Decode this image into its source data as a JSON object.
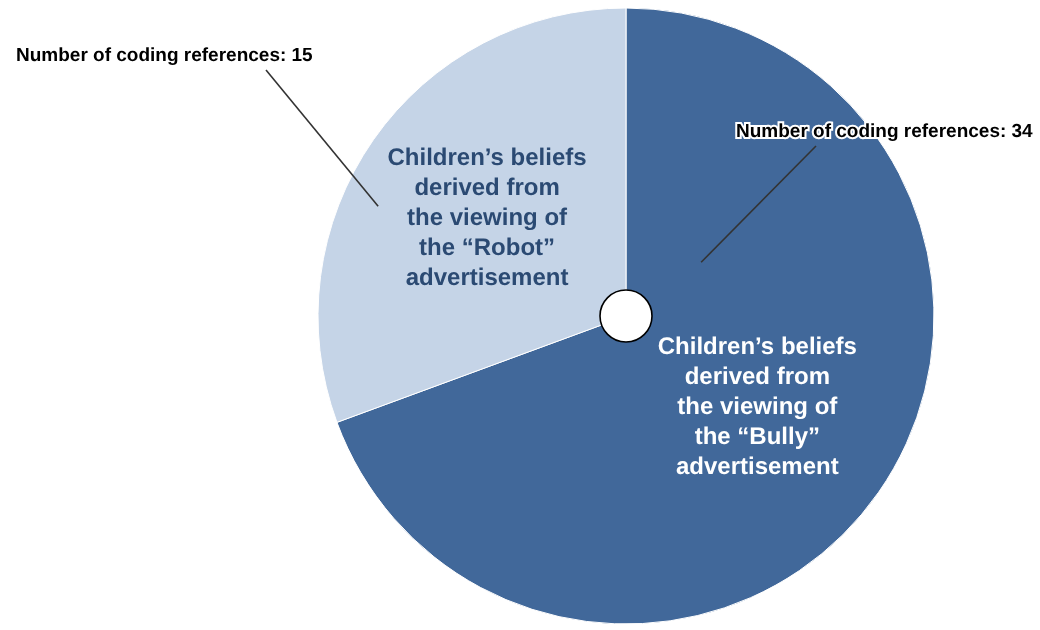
{
  "chart_data": {
    "type": "pie",
    "categories": [
      "Children’s beliefs\nderived from\nthe viewing of\nthe “Bully”\nadvertisement",
      "Children’s beliefs\nderived from\nthe viewing of\nthe “Robot”\nadvertisement"
    ],
    "values": [
      34,
      15
    ],
    "colors": [
      "#41689a",
      "#c5d4e7"
    ],
    "value_labels": [
      "Number of coding references: 34",
      "Number of coding references: 15"
    ]
  }
}
